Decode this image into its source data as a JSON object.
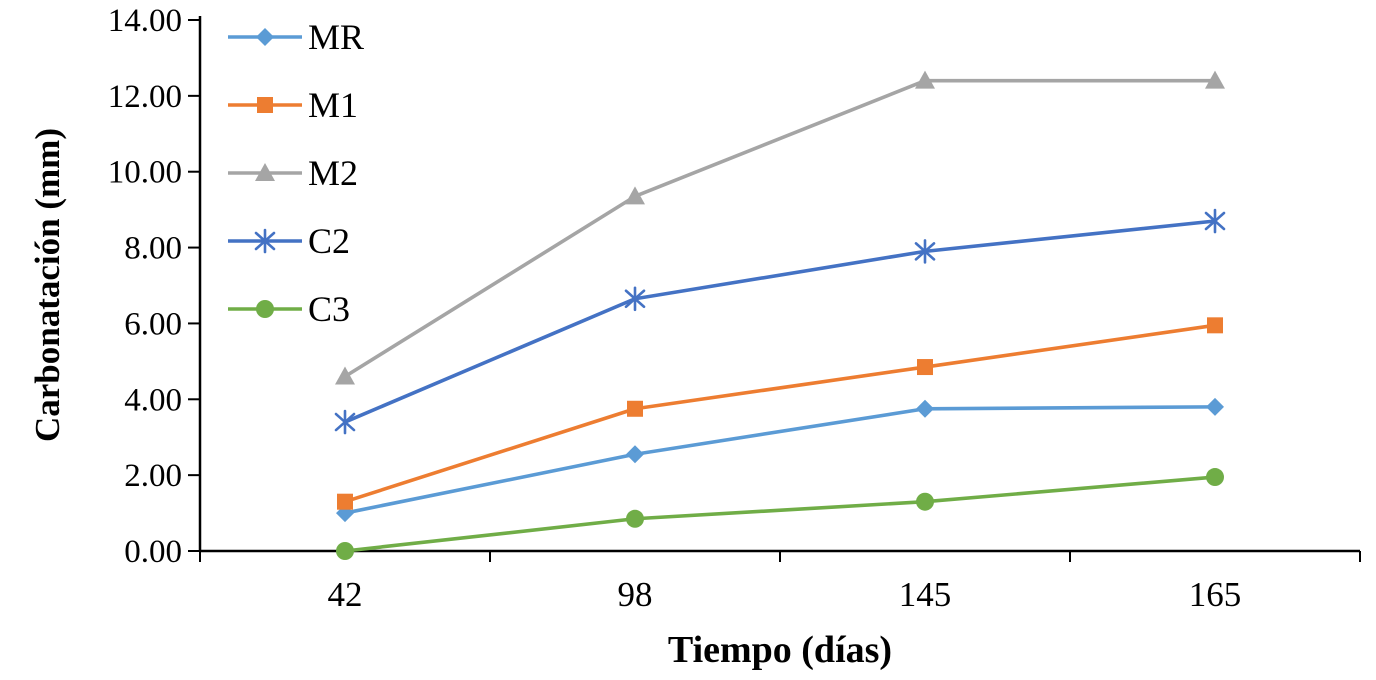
{
  "chart_data": {
    "type": "line",
    "title": "",
    "xlabel": "Tiempo (días)",
    "ylabel": "Carbonatación (mm)",
    "categories": [
      "42",
      "98",
      "145",
      "165"
    ],
    "series": [
      {
        "name": "MR",
        "color": "#5B9BD5",
        "marker": "diamond",
        "values": [
          1.0,
          2.55,
          3.75,
          3.8
        ]
      },
      {
        "name": "M1",
        "color": "#ED7D31",
        "marker": "square",
        "values": [
          1.3,
          3.75,
          4.85,
          5.95
        ]
      },
      {
        "name": "M2",
        "color": "#A5A5A5",
        "marker": "triangle",
        "values": [
          4.6,
          9.35,
          12.4,
          12.4
        ]
      },
      {
        "name": "C2",
        "color": "#4472C4",
        "marker": "asterisk",
        "values": [
          3.4,
          6.65,
          7.9,
          8.7
        ]
      },
      {
        "name": "C3",
        "color": "#70AD47",
        "marker": "circle",
        "values": [
          0.0,
          0.85,
          1.3,
          1.95
        ]
      }
    ],
    "ylim": [
      0,
      14
    ],
    "y_tick_step": 2,
    "y_tick_labels": [
      "0.00",
      "2.00",
      "4.00",
      "6.00",
      "8.00",
      "10.00",
      "12.00",
      "14.00"
    ],
    "grid": false,
    "legend_position": "top-left-inside",
    "axis_color": "#000000",
    "text_color": "#000000"
  }
}
